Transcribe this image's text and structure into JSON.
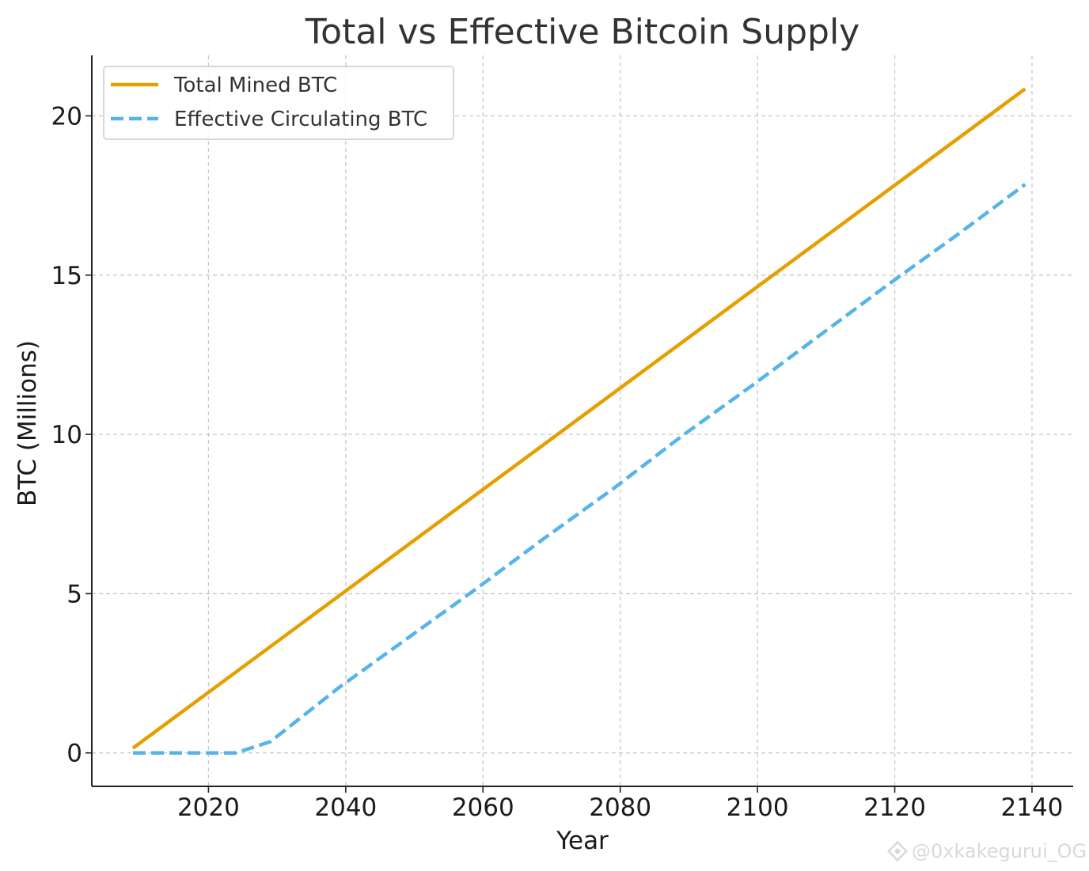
{
  "chart_data": {
    "type": "line",
    "title": "Total vs Effective Bitcoin Supply",
    "xlabel": "Year",
    "ylabel": "BTC (Millions)",
    "xlim": [
      2003,
      2146
    ],
    "ylim": [
      -1.05,
      21.9
    ],
    "xticks": [
      2020,
      2040,
      2060,
      2080,
      2100,
      2120,
      2140
    ],
    "yticks": [
      0,
      5,
      10,
      15,
      20
    ],
    "grid": true,
    "legend_position": "top-left",
    "series": [
      {
        "name": "Total Mined BTC",
        "color": "#E69F00",
        "style": "solid",
        "x": [
          2009,
          2139
        ],
        "y": [
          0.15,
          20.85
        ]
      },
      {
        "name": "Effective Circulating BTC",
        "color": "#56B4E9",
        "style": "dashed",
        "x": [
          2009,
          2024,
          2029,
          2039,
          2049,
          2059,
          2069,
          2079,
          2089,
          2099,
          2109,
          2119,
          2129,
          2139
        ],
        "y": [
          0,
          0,
          0.35,
          2.05,
          3.6,
          5.15,
          6.75,
          8.3,
          9.95,
          11.5,
          13.1,
          14.7,
          16.25,
          17.85
        ]
      }
    ]
  },
  "watermark": {
    "text": "@0xkakegurui_OG",
    "icon": "binance-logo-icon"
  }
}
